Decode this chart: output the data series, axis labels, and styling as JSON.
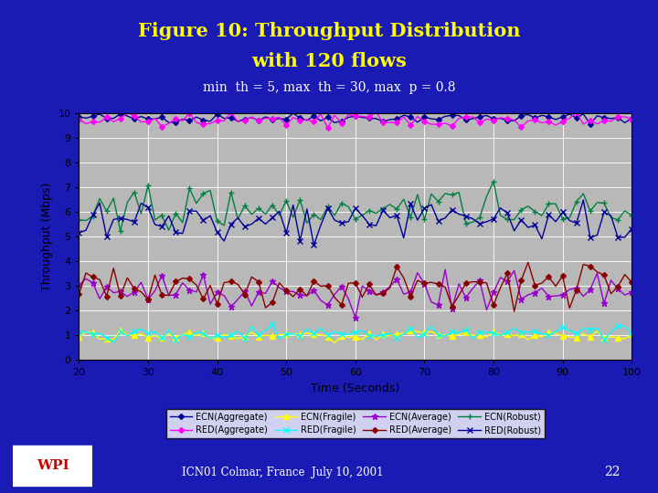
{
  "title_line1": "Figure 10: Throughput Distribution",
  "title_line2": "with 120 flows",
  "subtitle": "min  th = 5, max  th = 30, max  p = 0.8",
  "xlabel": "Time (Seconds)",
  "ylabel": "Throughput (Mbps)",
  "xlim": [
    20,
    100
  ],
  "ylim": [
    0,
    10
  ],
  "yticks": [
    0,
    1,
    2,
    3,
    4,
    5,
    6,
    7,
    8,
    9,
    10
  ],
  "xticks": [
    20,
    30,
    40,
    50,
    60,
    70,
    80,
    90,
    100
  ],
  "bg_color": "#1a1ab5",
  "plot_bg_color": "#b8b8b8",
  "title_color": "#ffff00",
  "subtitle_color": "#ffffff",
  "series": {
    "ECN_Aggregate": {
      "color": "#000099",
      "marker": "D",
      "ms": 3,
      "lw": 1.0,
      "mean": 9.82,
      "std": 0.1
    },
    "RED_Aggregate": {
      "color": "#ff00ff",
      "marker": "D",
      "ms": 3,
      "lw": 1.0,
      "mean": 9.72,
      "std": 0.15
    },
    "ECN_Fragile": {
      "color": "#ffff00",
      "marker": "^",
      "ms": 4,
      "lw": 1.0,
      "mean": 1.0,
      "std": 0.1
    },
    "RED_Fragile": {
      "color": "#00ffff",
      "marker": "x",
      "ms": 4,
      "lw": 1.0,
      "mean": 1.1,
      "std": 0.15
    },
    "ECN_Average": {
      "color": "#9900cc",
      "marker": "*",
      "ms": 5,
      "lw": 1.0,
      "mean": 2.8,
      "std": 0.4
    },
    "RED_Average": {
      "color": "#8b0000",
      "marker": "D",
      "ms": 3,
      "lw": 1.0,
      "mean": 3.0,
      "std": 0.4
    },
    "ECN_Robust": {
      "color": "#008040",
      "marker": "+",
      "ms": 5,
      "lw": 1.0,
      "mean": 6.1,
      "std": 0.42
    },
    "RED_Robust": {
      "color": "#000099",
      "marker": "x",
      "ms": 4,
      "lw": 1.0,
      "mean": 5.6,
      "std": 0.42
    }
  },
  "legend_order": [
    "ECN_Aggregate",
    "RED_Aggregate",
    "ECN_Fragile",
    "RED_Fragile",
    "ECN_Average",
    "RED_Average",
    "ECN_Robust",
    "RED_Robust"
  ],
  "legend_labels": [
    "ECN(Aggregate)",
    "RED(Aggregate)",
    "ECN(Fragile)",
    "RED(Fragile)",
    "ECN(Average)",
    "RED(Average)",
    "ECN(Robust)",
    "RED(Robust)"
  ],
  "footer_text": "ICN01 Colmar, France  July 10, 2001",
  "footer_number": "22",
  "seed": 42
}
